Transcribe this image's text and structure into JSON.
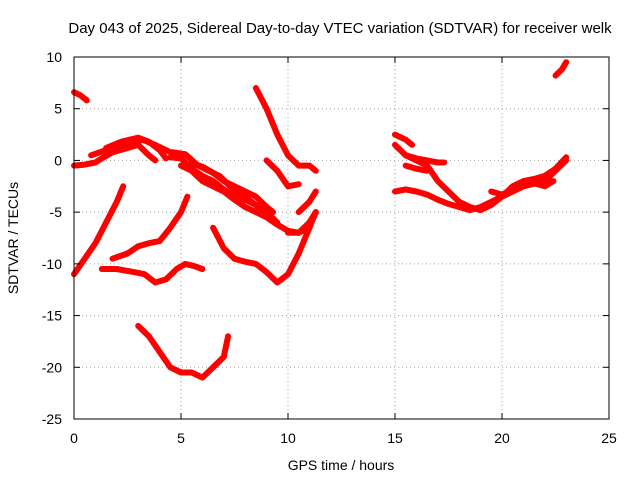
{
  "chart_data": {
    "type": "line",
    "title": "Day 043 of 2025, Sidereal Day-to-day VTEC variation (SDTVAR) for receiver welk",
    "xlabel": "GPS time / hours",
    "ylabel": "SDTVAR / TECUs",
    "xlim": [
      0,
      25
    ],
    "ylim": [
      -25,
      10
    ],
    "xticks": [
      0,
      5,
      10,
      15,
      20,
      25
    ],
    "yticks": [
      -25,
      -20,
      -15,
      -10,
      -5,
      0,
      5,
      10
    ],
    "grid": true,
    "series_color": "#ff0000",
    "series": [
      {
        "points": [
          [
            0,
            6.6
          ],
          [
            0.3,
            6.3
          ],
          [
            0.6,
            5.8
          ]
        ]
      },
      {
        "points": [
          [
            0,
            -11
          ],
          [
            0.5,
            -9.5
          ],
          [
            1,
            -8
          ],
          [
            1.5,
            -6
          ],
          [
            2,
            -4
          ],
          [
            2.3,
            -2.5
          ]
        ]
      },
      {
        "points": [
          [
            0,
            -0.5
          ],
          [
            0.5,
            -0.4
          ],
          [
            1,
            -0.2
          ],
          [
            1.3,
            0.2
          ],
          [
            1.8,
            0.8
          ],
          [
            2.5,
            1.2
          ],
          [
            3,
            1.5
          ],
          [
            3.5,
            0.5
          ],
          [
            3.8,
            0
          ]
        ]
      },
      {
        "points": [
          [
            0.8,
            0.5
          ],
          [
            1.5,
            1
          ],
          [
            2.5,
            1.5
          ],
          [
            3.2,
            2
          ],
          [
            3.8,
            1.5
          ],
          [
            4.5,
            0.8
          ]
        ]
      },
      {
        "points": [
          [
            1.5,
            1.2
          ],
          [
            2.2,
            1.8
          ],
          [
            3,
            2.2
          ],
          [
            3.5,
            1.8
          ],
          [
            4,
            1
          ],
          [
            4.3,
            0.2
          ]
        ]
      },
      {
        "points": [
          [
            1.8,
            -9.5
          ],
          [
            2.5,
            -9
          ],
          [
            3,
            -8.3
          ],
          [
            3.5,
            -8
          ],
          [
            4,
            -7.8
          ],
          [
            4.5,
            -6.5
          ],
          [
            5,
            -5
          ],
          [
            5.3,
            -3.5
          ]
        ]
      },
      {
        "points": [
          [
            1.3,
            -10.5
          ],
          [
            2,
            -10.5
          ],
          [
            2.8,
            -10.8
          ],
          [
            3.3,
            -11
          ],
          [
            3.8,
            -11.8
          ],
          [
            4.3,
            -11.5
          ],
          [
            4.8,
            -10.5
          ],
          [
            5.2,
            -10
          ],
          [
            5.6,
            -10.2
          ],
          [
            6,
            -10.5
          ]
        ]
      },
      {
        "points": [
          [
            3,
            -16
          ],
          [
            3.5,
            -17
          ],
          [
            4,
            -18.5
          ],
          [
            4.5,
            -20
          ],
          [
            5,
            -20.5
          ],
          [
            5.5,
            -20.5
          ],
          [
            6,
            -21
          ],
          [
            6.5,
            -20
          ],
          [
            7,
            -19
          ],
          [
            7.2,
            -17
          ]
        ]
      },
      {
        "points": [
          [
            4.5,
            0.3
          ],
          [
            5,
            0.2
          ],
          [
            5.5,
            -0.8
          ],
          [
            6,
            -1.5
          ],
          [
            6.5,
            -2
          ],
          [
            7,
            -2.8
          ],
          [
            7.5,
            -3.5
          ],
          [
            8,
            -3.8
          ],
          [
            8.5,
            -4.3
          ],
          [
            9,
            -5
          ],
          [
            9.5,
            -6
          ]
        ]
      },
      {
        "points": [
          [
            4.6,
            0.8
          ],
          [
            5.2,
            0.6
          ],
          [
            5.8,
            -0.5
          ],
          [
            6.3,
            -1
          ],
          [
            6.8,
            -1.5
          ],
          [
            7.3,
            -2.5
          ],
          [
            7.8,
            -3.3
          ],
          [
            8.3,
            -4
          ],
          [
            8.8,
            -4.8
          ],
          [
            9.2,
            -5.5
          ]
        ]
      },
      {
        "points": [
          [
            5,
            -0.5
          ],
          [
            5.5,
            -1
          ],
          [
            6,
            -2
          ],
          [
            6.5,
            -2.5
          ],
          [
            7,
            -3
          ],
          [
            7.5,
            -3.8
          ],
          [
            8,
            -4.5
          ],
          [
            8.5,
            -5
          ],
          [
            9,
            -5.5
          ],
          [
            9.5,
            -6.2
          ],
          [
            10,
            -6.8
          ],
          [
            10.5,
            -7
          ],
          [
            11,
            -6.5
          ]
        ]
      },
      {
        "points": [
          [
            5.5,
            -0.3
          ],
          [
            6,
            -0.6
          ],
          [
            6.5,
            -1.2
          ],
          [
            7,
            -2
          ],
          [
            7.5,
            -2.5
          ],
          [
            8,
            -3
          ],
          [
            8.5,
            -3.5
          ],
          [
            9,
            -4.5
          ],
          [
            9.3,
            -5
          ]
        ]
      },
      {
        "points": [
          [
            6.5,
            -6.5
          ],
          [
            7,
            -8.5
          ],
          [
            7.5,
            -9.5
          ],
          [
            8,
            -9.8
          ],
          [
            8.5,
            -10
          ],
          [
            9,
            -10.8
          ],
          [
            9.5,
            -11.8
          ],
          [
            10,
            -11
          ],
          [
            10.5,
            -9
          ],
          [
            11,
            -6.5
          ],
          [
            11.3,
            -5
          ]
        ]
      },
      {
        "points": [
          [
            8.5,
            7
          ],
          [
            9,
            5
          ],
          [
            9.5,
            2.5
          ],
          [
            10,
            0.5
          ],
          [
            10.5,
            -0.5
          ],
          [
            11,
            -0.5
          ],
          [
            11.3,
            -1
          ]
        ]
      },
      {
        "points": [
          [
            9,
            0
          ],
          [
            9.5,
            -1
          ],
          [
            10,
            -2.5
          ],
          [
            10.5,
            -2.3
          ]
        ]
      },
      {
        "points": [
          [
            10.5,
            -5
          ],
          [
            11,
            -4
          ],
          [
            11.3,
            -3
          ]
        ]
      },
      {
        "points": [
          [
            10,
            -7
          ],
          [
            10.5,
            -7
          ],
          [
            11,
            -6
          ],
          [
            11.3,
            -5
          ]
        ]
      },
      {
        "points": [
          [
            15,
            -3
          ],
          [
            15.5,
            -2.8
          ],
          [
            16,
            -3
          ],
          [
            16.5,
            -3.3
          ],
          [
            17,
            -3.8
          ],
          [
            17.5,
            -4.2
          ],
          [
            18,
            -4.5
          ],
          [
            18.5,
            -4.8
          ],
          [
            19,
            -4.5
          ],
          [
            19.5,
            -4
          ],
          [
            20,
            -3.5
          ],
          [
            20.5,
            -3
          ],
          [
            21,
            -2.5
          ],
          [
            22,
            -2
          ],
          [
            23,
            0
          ]
        ]
      },
      {
        "points": [
          [
            15,
            1.5
          ],
          [
            15.5,
            0.5
          ],
          [
            16,
            0
          ],
          [
            16.5,
            -0.5
          ],
          [
            17,
            -2
          ],
          [
            17.5,
            -3
          ],
          [
            18,
            -4
          ],
          [
            18.5,
            -4.5
          ],
          [
            19,
            -4.8
          ],
          [
            19.5,
            -4.3
          ],
          [
            20,
            -3.5
          ],
          [
            20.5,
            -2.5
          ],
          [
            21,
            -2
          ],
          [
            21.5,
            -1.8
          ],
          [
            22,
            -1.5
          ],
          [
            22.5,
            -0.8
          ],
          [
            23,
            0.3
          ]
        ]
      },
      {
        "points": [
          [
            15,
            2.5
          ],
          [
            15.5,
            2
          ],
          [
            15.8,
            1.5
          ]
        ]
      },
      {
        "points": [
          [
            15.5,
            0.5
          ],
          [
            16,
            0.2
          ],
          [
            16.5,
            0
          ]
        ]
      },
      {
        "points": [
          [
            15.5,
            -0.5
          ],
          [
            16,
            -0.8
          ],
          [
            16.5,
            -1
          ]
        ]
      },
      {
        "points": [
          [
            16.5,
            0
          ],
          [
            17,
            -0.2
          ],
          [
            17.3,
            -0.2
          ]
        ]
      },
      {
        "points": [
          [
            19.5,
            -3
          ],
          [
            20,
            -3.3
          ],
          [
            20.5,
            -2.8
          ],
          [
            21,
            -2.5
          ],
          [
            21.5,
            -2.2
          ],
          [
            22,
            -2.5
          ],
          [
            22.4,
            -2
          ]
        ]
      },
      {
        "points": [
          [
            22.5,
            8.2
          ],
          [
            22.8,
            8.8
          ],
          [
            23,
            9.5
          ]
        ]
      }
    ]
  }
}
